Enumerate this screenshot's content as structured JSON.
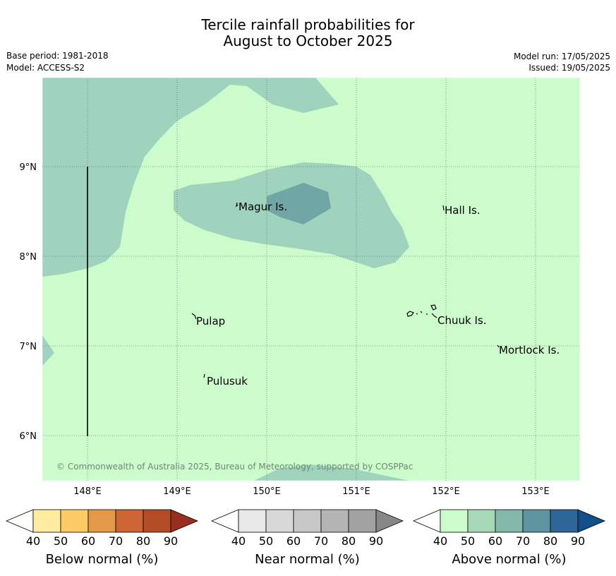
{
  "title": {
    "line1": "Tercile rainfall probabilities for",
    "line2": "August to October 2025"
  },
  "metadata": {
    "base_period": "Base period: 1981-2018",
    "model": "Model: ACCESS-S2",
    "model_run": "Model run: 17/05/2025",
    "issued": "Issued: 19/05/2025"
  },
  "map": {
    "longitude_ticks": [
      "148°E",
      "149°E",
      "150°E",
      "151°E",
      "152°E",
      "153°E"
    ],
    "latitude_ticks": [
      "9°N",
      "8°N",
      "7°N",
      "6°N"
    ],
    "background_category": "Above normal 40-50",
    "places": [
      {
        "name": "Magur Is."
      },
      {
        "name": "Hall Is."
      },
      {
        "name": "Pulap"
      },
      {
        "name": "Chuuk Is."
      },
      {
        "name": "Mortlock Is."
      },
      {
        "name": "Pulusuk"
      }
    ],
    "copyright": "© Commonwealth of Australia 2025, Bureau of Meteorology, supported by COSPPac"
  },
  "legends": [
    {
      "label": "Below normal (%)",
      "ticks": [
        "40",
        "50",
        "60",
        "70",
        "80",
        "90"
      ],
      "colors": [
        "#ffffff",
        "#ffeca0",
        "#fdcc66",
        "#e29a4a",
        "#cd6433",
        "#b24d27",
        "#982e1f"
      ]
    },
    {
      "label": "Near normal (%)",
      "ticks": [
        "40",
        "50",
        "60",
        "70",
        "80",
        "90"
      ],
      "colors": [
        "#ffffff",
        "#e8e8e8",
        "#d8d8d8",
        "#c8c8c8",
        "#b4b4b4",
        "#a2a2a2",
        "#878787"
      ]
    },
    {
      "label": "Above normal (%)",
      "ticks": [
        "40",
        "50",
        "60",
        "70",
        "80",
        "90"
      ],
      "colors": [
        "#ffffff",
        "#ccfccb",
        "#a7d8b8",
        "#82b8a9",
        "#5d94a0",
        "#2f6698",
        "#124e87"
      ]
    }
  ],
  "colors": {
    "above_40_50": "#ccfccb",
    "above_50_60": "#a0d3bd",
    "above_60_70": "#70a6a6"
  }
}
